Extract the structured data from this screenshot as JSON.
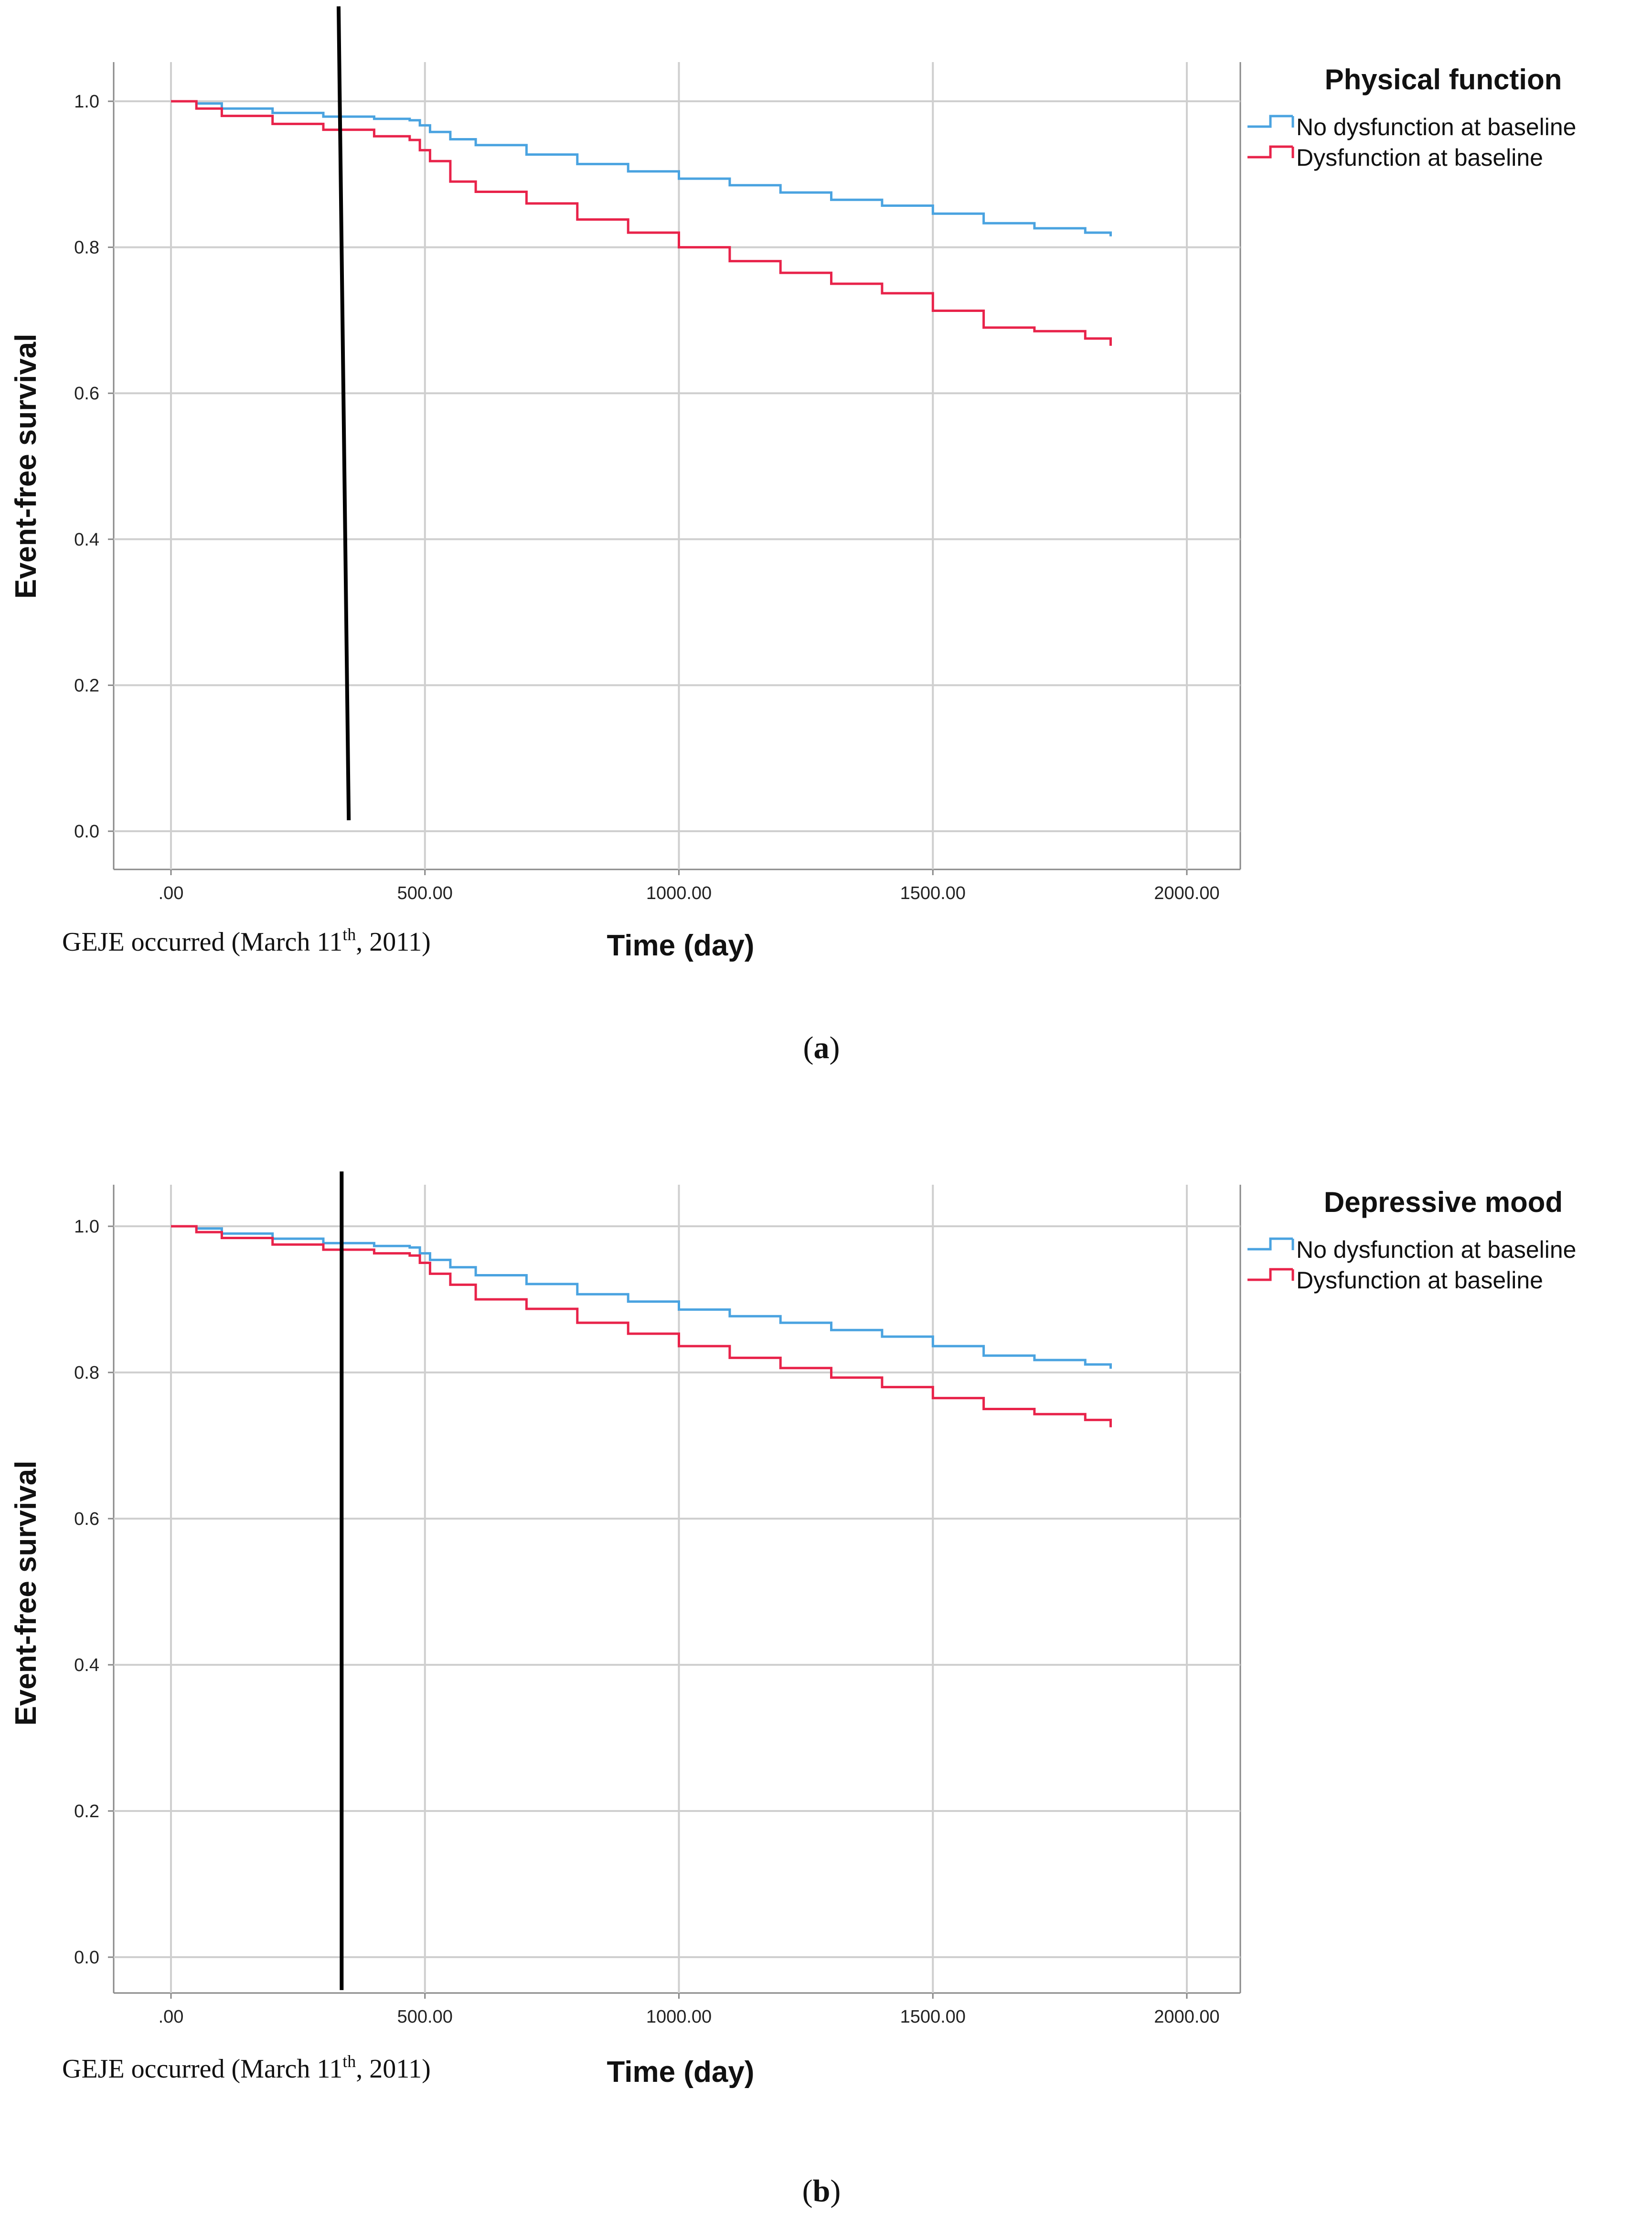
{
  "chart_data": [
    {
      "type": "line",
      "panel_caption": {
        "open": "(",
        "letter": "a",
        "close": ")"
      },
      "legend_title": "Physical function",
      "xlabel": "Time (day)",
      "ylabel": "Event-free survival",
      "xlim": [
        -100,
        2100
      ],
      "ylim": [
        -0.06,
        1.06
      ],
      "x_ticks": [
        0,
        500,
        1000,
        1500,
        2000
      ],
      "x_tick_labels": [
        ".00",
        "500.00",
        "1000.00",
        "1500.00",
        "2000.00"
      ],
      "y_ticks": [
        0,
        0.2,
        0.4,
        0.6,
        0.8,
        1.0
      ],
      "y_tick_labels": [
        "0.0",
        "0.2",
        "0.4",
        "0.6",
        "0.8",
        "1.0"
      ],
      "grid": true,
      "event_marker": {
        "x_top": 330,
        "x_bottom": 350,
        "y_top": 1.13,
        "y_bottom": 0.015,
        "label": "GEJE occurred (March 11",
        "label_sup": "th",
        "label_end": ", 2011)"
      },
      "series": [
        {
          "name": "No dysfunction at baseline",
          "color": "#4aa3e0",
          "x": [
            0,
            50,
            100,
            200,
            300,
            400,
            470,
            490,
            510,
            550,
            600,
            700,
            800,
            900,
            1000,
            1100,
            1200,
            1300,
            1400,
            1500,
            1600,
            1700,
            1800,
            1850
          ],
          "y": [
            1.0,
            0.997,
            0.99,
            0.984,
            0.979,
            0.976,
            0.974,
            0.967,
            0.958,
            0.948,
            0.94,
            0.927,
            0.914,
            0.904,
            0.894,
            0.885,
            0.875,
            0.865,
            0.857,
            0.846,
            0.833,
            0.826,
            0.82,
            0.815
          ]
        },
        {
          "name": "Dysfunction at baseline",
          "color": "#e8234a",
          "x": [
            0,
            50,
            100,
            200,
            300,
            400,
            470,
            490,
            510,
            550,
            600,
            700,
            800,
            900,
            1000,
            1100,
            1200,
            1300,
            1400,
            1500,
            1600,
            1700,
            1800,
            1850
          ],
          "y": [
            1.0,
            0.99,
            0.98,
            0.969,
            0.961,
            0.952,
            0.947,
            0.933,
            0.918,
            0.89,
            0.876,
            0.86,
            0.838,
            0.82,
            0.8,
            0.781,
            0.765,
            0.75,
            0.737,
            0.713,
            0.69,
            0.685,
            0.675,
            0.665
          ]
        }
      ]
    },
    {
      "type": "line",
      "panel_caption": {
        "open": "(",
        "letter": "b",
        "close": ")"
      },
      "legend_title": "Depressive mood",
      "xlabel": "Time (day)",
      "ylabel": "Event-free survival",
      "xlim": [
        -100,
        2100
      ],
      "ylim": [
        -0.06,
        1.06
      ],
      "x_ticks": [
        0,
        500,
        1000,
        1500,
        2000
      ],
      "x_tick_labels": [
        ".00",
        "500.00",
        "1000.00",
        "1500.00",
        "2000.00"
      ],
      "y_ticks": [
        0,
        0.2,
        0.4,
        0.6,
        0.8,
        1.0
      ],
      "y_tick_labels": [
        "0.0",
        "0.2",
        "0.4",
        "0.6",
        "0.8",
        "1.0"
      ],
      "grid": true,
      "event_marker": {
        "x_top": 336,
        "x_bottom": 336,
        "y_top": 1.075,
        "y_bottom": -0.045,
        "label": "GEJE occurred (March 11",
        "label_sup": "th",
        "label_end": ", 2011)"
      },
      "series": [
        {
          "name": "No dysfunction at baseline",
          "color": "#4aa3e0",
          "x": [
            0,
            50,
            100,
            200,
            300,
            400,
            470,
            490,
            510,
            550,
            600,
            700,
            800,
            900,
            1000,
            1100,
            1200,
            1300,
            1400,
            1500,
            1600,
            1700,
            1800,
            1850
          ],
          "y": [
            1.0,
            0.997,
            0.99,
            0.983,
            0.977,
            0.973,
            0.971,
            0.963,
            0.954,
            0.944,
            0.933,
            0.921,
            0.907,
            0.897,
            0.886,
            0.877,
            0.868,
            0.858,
            0.849,
            0.836,
            0.823,
            0.817,
            0.811,
            0.805
          ]
        },
        {
          "name": "Dysfunction at baseline",
          "color": "#e8234a",
          "x": [
            0,
            50,
            100,
            200,
            300,
            400,
            470,
            490,
            510,
            550,
            600,
            700,
            800,
            900,
            1000,
            1100,
            1200,
            1300,
            1400,
            1500,
            1600,
            1700,
            1800,
            1850
          ],
          "y": [
            1.0,
            0.992,
            0.984,
            0.975,
            0.968,
            0.963,
            0.96,
            0.95,
            0.935,
            0.92,
            0.9,
            0.887,
            0.868,
            0.853,
            0.836,
            0.82,
            0.806,
            0.793,
            0.78,
            0.765,
            0.75,
            0.743,
            0.735,
            0.725
          ]
        }
      ]
    }
  ]
}
